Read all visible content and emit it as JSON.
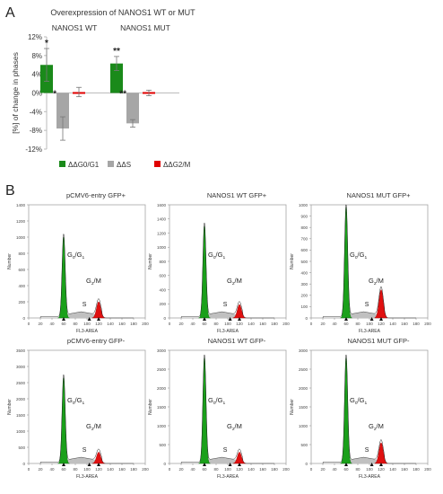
{
  "panel_labels": {
    "a": "A",
    "b": "B"
  },
  "bar_chart": {
    "title": "Overexpression of NANOS1 WT or MUT",
    "group_labels": [
      "NANOS1 WT",
      "NANOS1 MUT"
    ],
    "ylabel": "[%] of change in phases",
    "yticks": [
      "12%",
      "8%",
      "4%",
      "0%",
      "-4%",
      "-8%",
      "-12%"
    ],
    "legend": [
      "ΔΔG0/G1",
      "ΔΔS",
      "ΔΔG2/M"
    ],
    "colors": {
      "g1": "#1a8a1a",
      "s": "#a6a6a6",
      "g2m": "#e00000"
    }
  },
  "chart_data": [
    {
      "type": "bar",
      "title": "Overexpression of NANOS1 WT or MUT",
      "xlabel": "",
      "ylabel": "[%] of change in phases",
      "ylim": [
        -12,
        12
      ],
      "categories": [
        "NANOS1 WT",
        "NANOS1 MUT"
      ],
      "series": [
        {
          "name": "ΔΔG0/G1",
          "values": [
            6.0,
            6.3
          ],
          "errors": [
            3.5,
            1.5
          ],
          "significance": [
            "*",
            "**"
          ]
        },
        {
          "name": "ΔΔS",
          "values": [
            -7.6,
            -6.5
          ],
          "errors": [
            2.5,
            0.8
          ],
          "significance": [
            "*",
            "**"
          ]
        },
        {
          "name": "ΔΔG2/M",
          "values": [
            0.2,
            0.0
          ],
          "errors": [
            1.0,
            0.6
          ],
          "significance": [
            "",
            ""
          ]
        }
      ],
      "legend_position": "bottom",
      "grid": false
    }
  ],
  "histograms": [
    {
      "title": "pCMV6-entry GFP+",
      "ylabel": "Number",
      "xlabel": "FL3-AREA",
      "yticks": [
        "0",
        "200",
        "400",
        "600",
        "800",
        "1000",
        "1200",
        "1400"
      ],
      "xticks": [
        "0",
        "20",
        "40",
        "60",
        "80",
        "100",
        "120",
        "140",
        "160",
        "180",
        "200"
      ],
      "g1_label": "G0/G1",
      "s_label": "S",
      "g2m_label": "G2/M",
      "ymax": 1400,
      "g1_peak": 60,
      "g1_height": 1000,
      "g2_peak": 120,
      "g2_height": 200
    },
    {
      "title": "NANOS1 WT GFP+",
      "ylabel": "Number",
      "xlabel": "FL3-AREA",
      "yticks": [
        "0",
        "200",
        "400",
        "600",
        "800",
        "1000",
        "1200",
        "1400",
        "1600"
      ],
      "xticks": [
        "0",
        "20",
        "40",
        "60",
        "80",
        "100",
        "120",
        "140",
        "160",
        "180",
        "200"
      ],
      "g1_label": "G0/G1",
      "s_label": "S",
      "g2m_label": "G2/M",
      "ymax": 1600,
      "g1_peak": 60,
      "g1_height": 1300,
      "g2_peak": 120,
      "g2_height": 190
    },
    {
      "title": "NANOS1 MUT GFP+",
      "ylabel": "Number",
      "xlabel": "FL3-AREA",
      "yticks": [
        "0",
        "100",
        "200",
        "300",
        "400",
        "500",
        "600",
        "700",
        "800",
        "900",
        "1000"
      ],
      "xticks": [
        "0",
        "20",
        "40",
        "60",
        "80",
        "100",
        "120",
        "140",
        "160",
        "180",
        "200"
      ],
      "g1_label": "G0/G1",
      "s_label": "S",
      "g2m_label": "G2/M",
      "ymax": 1000,
      "g1_peak": 60,
      "g1_height": 980,
      "g2_peak": 120,
      "g2_height": 250
    },
    {
      "title": "pCMV6-entry GFP-",
      "ylabel": "Number",
      "xlabel": "FL3-AREA",
      "yticks": [
        "0",
        "500",
        "1000",
        "1500",
        "2000",
        "2500",
        "3000",
        "3500"
      ],
      "xticks": [
        "0",
        "20",
        "40",
        "60",
        "80",
        "100",
        "120",
        "140",
        "160",
        "180",
        "200"
      ],
      "g1_label": "G0/G1",
      "s_label": "S",
      "g2m_label": "G2/M",
      "ymax": 3500,
      "g1_peak": 60,
      "g1_height": 2650,
      "g2_peak": 120,
      "g2_height": 350
    },
    {
      "title": "NANOS1 WT GFP-",
      "ylabel": "Number",
      "xlabel": "FL3-AREA",
      "yticks": [
        "0",
        "500",
        "1000",
        "1500",
        "2000",
        "2500",
        "3000"
      ],
      "xticks": [
        "0",
        "20",
        "40",
        "60",
        "80",
        "100",
        "120",
        "140",
        "160",
        "180",
        "200"
      ],
      "g1_label": "G0/G1",
      "s_label": "S",
      "g2m_label": "G2/M",
      "ymax": 3000,
      "g1_peak": 60,
      "g1_height": 2800,
      "g2_peak": 120,
      "g2_height": 300
    },
    {
      "title": "NANOS1 MUT GFP-",
      "ylabel": "Number",
      "xlabel": "FL3-AREA",
      "yticks": [
        "0",
        "500",
        "1000",
        "1500",
        "2000",
        "2500",
        "3000"
      ],
      "xticks": [
        "0",
        "20",
        "40",
        "60",
        "80",
        "100",
        "120",
        "140",
        "160",
        "180",
        "200"
      ],
      "g1_label": "G0/G1",
      "s_label": "S",
      "g2m_label": "G2/M",
      "ymax": 3000,
      "g1_peak": 60,
      "g1_height": 2800,
      "g2_peak": 120,
      "g2_height": 550
    }
  ]
}
